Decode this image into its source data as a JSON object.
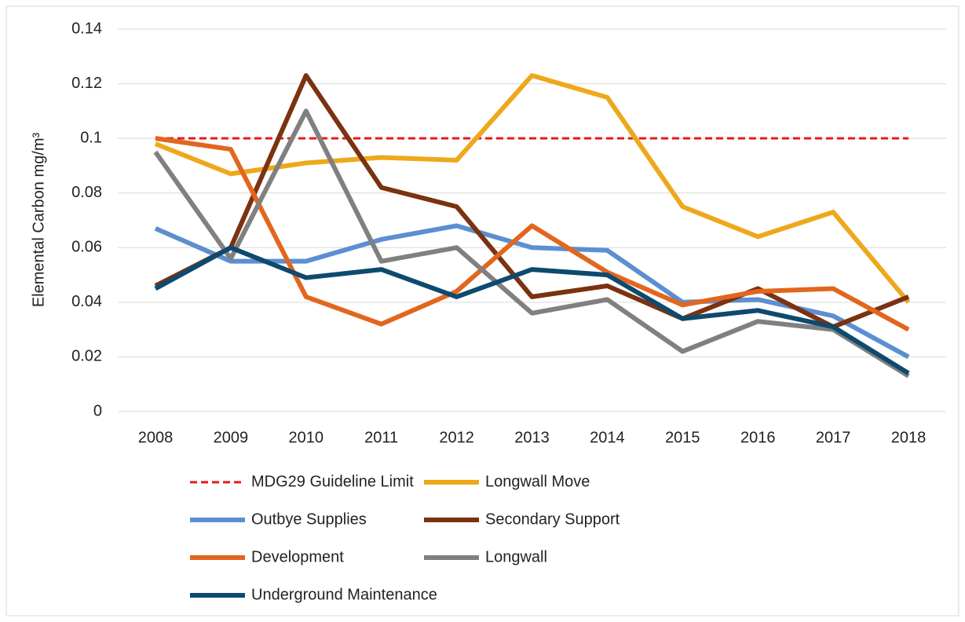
{
  "chart_data": {
    "type": "line",
    "y_label": "Elemental Carbon mg/m³",
    "categories": [
      "2008",
      "2009",
      "2010",
      "2011",
      "2012",
      "2013",
      "2014",
      "2015",
      "2016",
      "2017",
      "2018"
    ],
    "ylim": [
      0,
      0.14
    ],
    "yticks": [
      0,
      0.02,
      0.04,
      0.06,
      0.08,
      0.1,
      0.12,
      0.14
    ],
    "grid": true,
    "series": [
      {
        "name": "MDG29 Guideline Limit",
        "color": "#e8191c",
        "dashed": true,
        "values": [
          0.1,
          0.1,
          0.1,
          0.1,
          0.1,
          0.1,
          0.1,
          0.1,
          0.1,
          0.1,
          0.1
        ]
      },
      {
        "name": "Longwall Move",
        "color": "#eea81b",
        "values": [
          0.098,
          0.087,
          0.091,
          0.093,
          0.092,
          0.123,
          0.115,
          0.075,
          0.064,
          0.073,
          0.04
        ]
      },
      {
        "name": "Outbye Supplies",
        "color": "#5b8fd0",
        "values": [
          0.067,
          0.055,
          0.055,
          0.063,
          0.068,
          0.06,
          0.059,
          0.04,
          0.041,
          0.035,
          0.02
        ]
      },
      {
        "name": "Secondary Support",
        "color": "#7b3210",
        "values": [
          0.046,
          0.06,
          0.123,
          0.082,
          0.075,
          0.042,
          0.046,
          0.034,
          0.045,
          0.031,
          0.042
        ]
      },
      {
        "name": "Development",
        "color": "#e2661e",
        "values": [
          0.1,
          0.096,
          0.042,
          0.032,
          0.044,
          0.068,
          0.051,
          0.039,
          0.044,
          0.045,
          0.03
        ]
      },
      {
        "name": "Longwall",
        "color": "#808080",
        "values": [
          0.095,
          0.056,
          0.11,
          0.055,
          0.06,
          0.036,
          0.041,
          0.022,
          0.033,
          0.03,
          0.013
        ]
      },
      {
        "name": "Underground Maintenance",
        "color": "#0e4a6f",
        "values": [
          0.045,
          0.06,
          0.049,
          0.052,
          0.042,
          0.052,
          0.05,
          0.034,
          0.037,
          0.031,
          0.014
        ]
      }
    ]
  }
}
